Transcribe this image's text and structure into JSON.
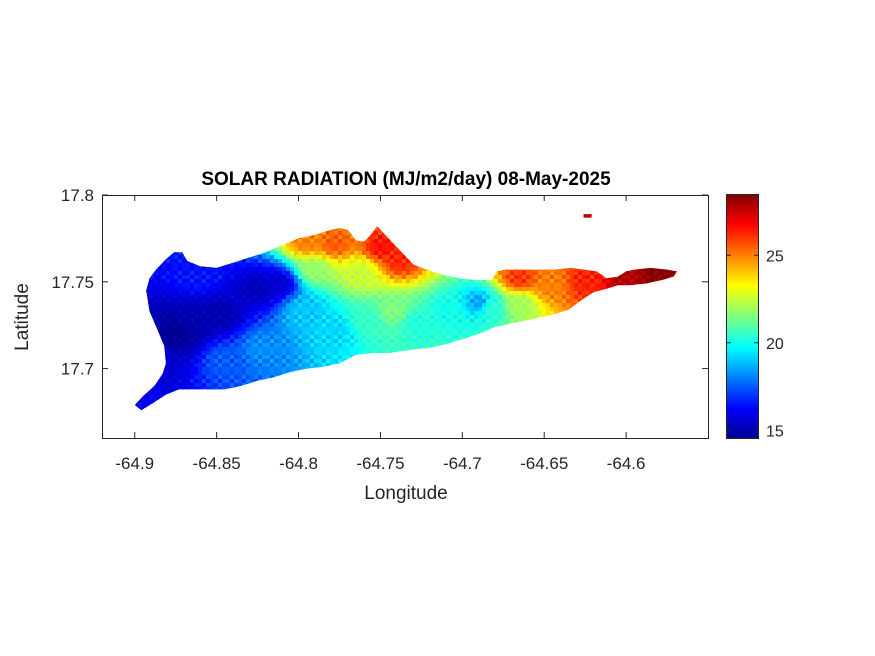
{
  "chart_data": {
    "type": "heatmap",
    "title": "SOLAR RADIATION (MJ/m2/day) 08-May-2025",
    "xlabel": "Longitude",
    "ylabel": "Latitude",
    "xlim": [
      -64.92,
      -64.55
    ],
    "ylim": [
      17.66,
      17.8
    ],
    "xticks": [
      -64.9,
      -64.85,
      -64.8,
      -64.75,
      -64.7,
      -64.65,
      -64.6
    ],
    "xtick_labels": [
      "-64.9",
      "-64.85",
      "-64.8",
      "-64.75",
      "-64.7",
      "-64.65",
      "-64.6"
    ],
    "yticks": [
      17.7,
      17.75,
      17.8
    ],
    "ytick_labels": [
      "17.7",
      "17.75",
      "17.8"
    ],
    "colormap": "jet",
    "colorbar": {
      "min": 14.5,
      "max": 28.5,
      "ticks": [
        15,
        20,
        25
      ],
      "tick_labels": [
        "15",
        "20",
        "25"
      ],
      "placement": "right"
    },
    "grid": false,
    "land_outline": [
      [
        -64.9,
        17.679
      ],
      [
        -64.895,
        17.684
      ],
      [
        -64.888,
        17.69
      ],
      [
        -64.883,
        17.697
      ],
      [
        -64.881,
        17.703
      ],
      [
        -64.882,
        17.713
      ],
      [
        -64.886,
        17.722
      ],
      [
        -64.891,
        17.733
      ],
      [
        -64.893,
        17.745
      ],
      [
        -64.891,
        17.752
      ],
      [
        -64.887,
        17.757
      ],
      [
        -64.881,
        17.763
      ],
      [
        -64.876,
        17.767
      ],
      [
        -64.871,
        17.767
      ],
      [
        -64.868,
        17.762
      ],
      [
        -64.86,
        17.759
      ],
      [
        -64.85,
        17.758
      ],
      [
        -64.84,
        17.761
      ],
      [
        -64.83,
        17.764
      ],
      [
        -64.82,
        17.767
      ],
      [
        -64.81,
        17.771
      ],
      [
        -64.8,
        17.775
      ],
      [
        -64.79,
        17.777
      ],
      [
        -64.78,
        17.78
      ],
      [
        -64.775,
        17.781
      ],
      [
        -64.77,
        17.78
      ],
      [
        -64.765,
        17.774
      ],
      [
        -64.76,
        17.773
      ],
      [
        -64.757,
        17.776
      ],
      [
        -64.752,
        17.782
      ],
      [
        -64.748,
        17.778
      ],
      [
        -64.742,
        17.772
      ],
      [
        -64.736,
        17.766
      ],
      [
        -64.73,
        17.76
      ],
      [
        -64.722,
        17.757
      ],
      [
        -64.712,
        17.754
      ],
      [
        -64.702,
        17.752
      ],
      [
        -64.692,
        17.751
      ],
      [
        -64.682,
        17.751
      ],
      [
        -64.679,
        17.756
      ],
      [
        -64.674,
        17.757
      ],
      [
        -64.664,
        17.757
      ],
      [
        -64.654,
        17.757
      ],
      [
        -64.644,
        17.757
      ],
      [
        -64.634,
        17.758
      ],
      [
        -64.626,
        17.757
      ],
      [
        -64.618,
        17.756
      ],
      [
        -64.612,
        17.752
      ],
      [
        -64.605,
        17.753
      ],
      [
        -64.6,
        17.756
      ],
      [
        -64.595,
        17.757
      ],
      [
        -64.585,
        17.758
      ],
      [
        -64.575,
        17.757
      ],
      [
        -64.569,
        17.756
      ],
      [
        -64.571,
        17.753
      ],
      [
        -64.578,
        17.751
      ],
      [
        -64.588,
        17.749
      ],
      [
        -64.598,
        17.748
      ],
      [
        -64.605,
        17.748
      ],
      [
        -64.612,
        17.746
      ],
      [
        -64.62,
        17.744
      ],
      [
        -64.628,
        17.739
      ],
      [
        -64.635,
        17.734
      ],
      [
        -64.645,
        17.731
      ],
      [
        -64.655,
        17.729
      ],
      [
        -64.665,
        17.727
      ],
      [
        -64.675,
        17.725
      ],
      [
        -64.68,
        17.724
      ],
      [
        -64.69,
        17.72
      ],
      [
        -64.7,
        17.717
      ],
      [
        -64.71,
        17.714
      ],
      [
        -64.72,
        17.712
      ],
      [
        -64.73,
        17.711
      ],
      [
        -64.745,
        17.709
      ],
      [
        -64.755,
        17.709
      ],
      [
        -64.765,
        17.708
      ],
      [
        -64.775,
        17.703
      ],
      [
        -64.785,
        17.701
      ],
      [
        -64.795,
        17.7
      ],
      [
        -64.805,
        17.698
      ],
      [
        -64.815,
        17.695
      ],
      [
        -64.825,
        17.693
      ],
      [
        -64.835,
        17.69
      ],
      [
        -64.845,
        17.688
      ],
      [
        -64.855,
        17.688
      ],
      [
        -64.865,
        17.688
      ],
      [
        -64.873,
        17.688
      ],
      [
        -64.881,
        17.685
      ],
      [
        -64.889,
        17.68
      ],
      [
        -64.896,
        17.676
      ],
      [
        -64.9,
        17.679
      ]
    ],
    "islet": [
      [
        -64.626,
        17.789
      ],
      [
        -64.621,
        17.789
      ],
      [
        -64.621,
        17.787
      ],
      [
        -64.626,
        17.787
      ],
      [
        -64.626,
        17.789
      ]
    ],
    "hotspots": [
      {
        "lon": -64.874,
        "lat": 17.72,
        "value": 14.5,
        "radius": 0.014
      },
      {
        "lon": -64.865,
        "lat": 17.726,
        "value": 15.0,
        "radius": 0.012
      },
      {
        "lon": -64.884,
        "lat": 17.704,
        "value": 15.5,
        "radius": 0.011
      },
      {
        "lon": -64.848,
        "lat": 17.731,
        "value": 15.0,
        "radius": 0.013
      },
      {
        "lon": -64.825,
        "lat": 17.746,
        "value": 15.2,
        "radius": 0.012
      },
      {
        "lon": -64.812,
        "lat": 17.749,
        "value": 15.5,
        "radius": 0.009
      },
      {
        "lon": -64.898,
        "lat": 17.682,
        "value": 16.0,
        "radius": 0.007
      },
      {
        "lon": -64.862,
        "lat": 17.752,
        "value": 16.5,
        "radius": 0.009
      },
      {
        "lon": -64.845,
        "lat": 17.705,
        "value": 17.5,
        "radius": 0.012
      },
      {
        "lon": -64.822,
        "lat": 17.712,
        "value": 18.2,
        "radius": 0.012
      },
      {
        "lon": -64.796,
        "lat": 17.733,
        "value": 19.0,
        "radius": 0.012
      },
      {
        "lon": -64.778,
        "lat": 17.722,
        "value": 19.2,
        "radius": 0.012
      },
      {
        "lon": -64.758,
        "lat": 17.728,
        "value": 20.5,
        "radius": 0.012
      },
      {
        "lon": -64.742,
        "lat": 17.733,
        "value": 21.5,
        "radius": 0.01
      },
      {
        "lon": -64.762,
        "lat": 17.755,
        "value": 22.5,
        "radius": 0.01
      },
      {
        "lon": -64.79,
        "lat": 17.757,
        "value": 21.8,
        "radius": 0.009
      },
      {
        "lon": -64.728,
        "lat": 17.726,
        "value": 20.2,
        "radius": 0.01
      },
      {
        "lon": -64.708,
        "lat": 17.733,
        "value": 20.0,
        "radius": 0.01
      },
      {
        "lon": -64.69,
        "lat": 17.738,
        "value": 18.5,
        "radius": 0.006
      },
      {
        "lon": -64.682,
        "lat": 17.735,
        "value": 20.3,
        "radius": 0.008
      },
      {
        "lon": -64.665,
        "lat": 17.737,
        "value": 22.0,
        "radius": 0.008
      },
      {
        "lon": -64.778,
        "lat": 17.772,
        "value": 25.5,
        "radius": 0.01
      },
      {
        "lon": -64.795,
        "lat": 17.773,
        "value": 25.0,
        "radius": 0.009
      },
      {
        "lon": -64.749,
        "lat": 17.77,
        "value": 26.5,
        "radius": 0.009
      },
      {
        "lon": -64.738,
        "lat": 17.762,
        "value": 26.2,
        "radius": 0.008
      },
      {
        "lon": -64.665,
        "lat": 17.752,
        "value": 26.0,
        "radius": 0.008
      },
      {
        "lon": -64.645,
        "lat": 17.748,
        "value": 25.0,
        "radius": 0.009
      },
      {
        "lon": -64.625,
        "lat": 17.75,
        "value": 26.3,
        "radius": 0.008
      },
      {
        "lon": -64.6,
        "lat": 17.752,
        "value": 27.8,
        "radius": 0.007
      },
      {
        "lon": -64.582,
        "lat": 17.753,
        "value": 28.5,
        "radius": 0.008
      },
      {
        "lon": -64.624,
        "lat": 17.788,
        "value": 27.5,
        "radius": 0.004
      }
    ]
  }
}
